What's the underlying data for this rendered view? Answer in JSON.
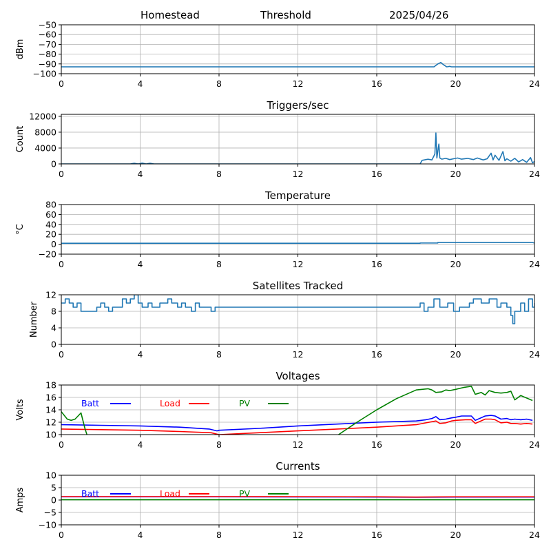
{
  "header": {
    "station": "Homestead",
    "mode": "Threshold",
    "date": "2025/04/26"
  },
  "colors": {
    "signal": "#1f77b4",
    "batt": "#0000ff",
    "load": "#ff0000",
    "pv": "#008000",
    "grid": "#b0b0b0"
  },
  "chart_data": [
    {
      "type": "line",
      "title": "",
      "xlabel": "",
      "ylabel": "dBm",
      "xlim": [
        0,
        24
      ],
      "ylim": [
        -100,
        -50
      ],
      "xticks": [
        0,
        4,
        8,
        12,
        16,
        20,
        24
      ],
      "yticks": [
        -50,
        -60,
        -70,
        -80,
        -90,
        -100
      ],
      "ytick_labels": [
        "−50",
        "−60",
        "−70",
        "−80",
        "−90",
        "−100"
      ],
      "grid": true,
      "series": [
        {
          "color": "signal",
          "x": [
            0,
            18.9,
            19.1,
            19.25,
            19.4,
            19.55,
            19.7,
            19.8,
            24
          ],
          "y": [
            -93,
            -93,
            -90,
            -88.5,
            -91,
            -93,
            -92.5,
            -93,
            -93
          ]
        }
      ]
    },
    {
      "type": "line",
      "title": "Triggers/sec",
      "xlabel": "",
      "ylabel": "Count",
      "xlim": [
        0,
        24
      ],
      "ylim": [
        0,
        12500
      ],
      "xticks": [
        0,
        4,
        8,
        12,
        16,
        20,
        24
      ],
      "yticks": [
        0,
        4000,
        8000,
        12000
      ],
      "ytick_labels": [
        "0",
        "4000",
        "8000",
        "12000"
      ],
      "grid": true,
      "series": [
        {
          "color": "signal",
          "x": [
            0,
            3.5,
            3.7,
            3.9,
            4.1,
            4.3,
            4.5,
            4.7,
            18.2,
            18.3,
            18.6,
            18.8,
            18.95,
            19.0,
            19.05,
            19.15,
            19.2,
            19.3,
            19.5,
            19.7,
            19.9,
            20.1,
            20.3,
            20.6,
            20.9,
            21.1,
            21.4,
            21.6,
            21.8,
            21.9,
            22.0,
            22.2,
            22.4,
            22.5,
            22.6,
            22.8,
            23.0,
            23.2,
            23.4,
            23.6,
            23.8,
            23.9,
            24.0
          ],
          "y": [
            0,
            0,
            150,
            0,
            200,
            0,
            150,
            0,
            0,
            900,
            1200,
            1000,
            2500,
            7800,
            1500,
            5000,
            1500,
            1200,
            1400,
            1100,
            1300,
            1500,
            1200,
            1400,
            1100,
            1500,
            1000,
            1300,
            2700,
            1000,
            2200,
            900,
            3100,
            800,
            1300,
            700,
            1400,
            500,
            1100,
            400,
            1600,
            300,
            600
          ]
        }
      ]
    },
    {
      "type": "line",
      "title": "Temperature",
      "xlabel": "",
      "ylabel": "°C",
      "xlim": [
        0,
        24
      ],
      "ylim": [
        -20,
        80
      ],
      "xticks": [
        0,
        4,
        8,
        12,
        16,
        20,
        24
      ],
      "yticks": [
        80,
        60,
        40,
        20,
        0,
        -20
      ],
      "ytick_labels": [
        "80",
        "60",
        "40",
        "20",
        "0",
        "−20"
      ],
      "grid": true,
      "series": [
        {
          "color": "signal",
          "x": [
            0,
            18.2,
            18.2,
            19.1,
            19.1,
            23.9,
            24
          ],
          "y": [
            2,
            2,
            2.5,
            2.5,
            3.5,
            3.5,
            2.5
          ]
        }
      ]
    },
    {
      "type": "line",
      "title": "Satellites Tracked",
      "xlabel": "",
      "ylabel": "Number",
      "xlim": [
        0,
        24
      ],
      "ylim": [
        0,
        12
      ],
      "xticks": [
        0,
        4,
        8,
        12,
        16,
        20,
        24
      ],
      "yticks": [
        0,
        4,
        8,
        12
      ],
      "ytick_labels": [
        "0",
        "4",
        "8",
        "12"
      ],
      "grid": true,
      "series": [
        {
          "color": "signal",
          "step": true,
          "x": [
            0,
            0.2,
            0.4,
            0.6,
            0.8,
            1.0,
            1.8,
            2.0,
            2.2,
            2.4,
            2.6,
            3.0,
            3.1,
            3.3,
            3.5,
            3.7,
            3.9,
            4.1,
            4.4,
            4.6,
            5.0,
            5.4,
            5.6,
            5.9,
            6.1,
            6.3,
            6.6,
            6.8,
            7.0,
            7.2,
            7.6,
            7.8,
            18.2,
            18.4,
            18.6,
            18.9,
            19.2,
            19.6,
            19.9,
            20.2,
            20.7,
            20.9,
            21.3,
            21.7,
            22.1,
            22.3,
            22.6,
            22.8,
            22.9,
            23.0,
            23.3,
            23.5,
            23.7,
            23.9,
            24.0
          ],
          "y": [
            10,
            11,
            10,
            9,
            10,
            8,
            9,
            10,
            9,
            8,
            9,
            9,
            11,
            10,
            11,
            12,
            10,
            9,
            10,
            9,
            10,
            11,
            10,
            9,
            10,
            9,
            8,
            10,
            9,
            9,
            8,
            9,
            10,
            8,
            9,
            11,
            9,
            10,
            8,
            9,
            10,
            11,
            10,
            11,
            9,
            10,
            9,
            7,
            5,
            8,
            10,
            8,
            11,
            9,
            10
          ]
        }
      ]
    },
    {
      "type": "line",
      "title": "Voltages",
      "xlabel": "",
      "ylabel": "Volts",
      "xlim": [
        0,
        24
      ],
      "ylim": [
        10,
        18
      ],
      "xticks": [
        0,
        4,
        8,
        12,
        16,
        20,
        24
      ],
      "yticks": [
        10,
        12,
        14,
        16,
        18
      ],
      "ytick_labels": [
        "10",
        "12",
        "14",
        "16",
        "18"
      ],
      "grid": true,
      "legend": "top-left",
      "series": [
        {
          "name": "Batt",
          "color": "batt",
          "x": [
            0,
            2,
            4,
            6,
            7.5,
            7.9,
            8.0,
            10,
            12,
            14,
            16,
            18,
            18.5,
            18.8,
            19.0,
            19.2,
            19.5,
            19.8,
            20.0,
            20.3,
            20.8,
            21.0,
            21.5,
            21.8,
            22.0,
            22.3,
            22.6,
            22.8,
            23.0,
            23.3,
            23.6,
            23.9
          ],
          "y": [
            11.6,
            11.5,
            11.4,
            11.2,
            10.9,
            10.6,
            10.7,
            11.0,
            11.4,
            11.7,
            12.0,
            12.2,
            12.4,
            12.6,
            12.9,
            12.4,
            12.5,
            12.7,
            12.8,
            13.0,
            13.0,
            12.3,
            13.0,
            13.1,
            13.0,
            12.5,
            12.6,
            12.4,
            12.5,
            12.4,
            12.5,
            12.3
          ]
        },
        {
          "name": "Load",
          "color": "load",
          "x": [
            0,
            2,
            4,
            6,
            7.6,
            8.0,
            10,
            12,
            14,
            16,
            18,
            18.5,
            19.0,
            19.2,
            19.5,
            19.8,
            20.0,
            20.5,
            20.8,
            21.0,
            21.5,
            21.8,
            22.0,
            22.3,
            22.6,
            22.8,
            23.0,
            23.3,
            23.6,
            23.9
          ],
          "y": [
            10.9,
            10.8,
            10.7,
            10.5,
            10.3,
            10.0,
            10.3,
            10.6,
            10.9,
            11.2,
            11.6,
            11.9,
            12.2,
            11.8,
            11.9,
            12.2,
            12.3,
            12.4,
            12.4,
            11.8,
            12.5,
            12.5,
            12.4,
            11.9,
            12.0,
            11.8,
            11.8,
            11.7,
            11.8,
            11.7
          ]
        },
        {
          "name": "PV",
          "color": "pv",
          "x": [
            0,
            0.3,
            0.5,
            0.7,
            1.0,
            1.2,
            1.5,
            13.6,
            15,
            16,
            17,
            18,
            18.3,
            18.6,
            18.8,
            19.0,
            19.3,
            19.5,
            19.7,
            20.0,
            20.4,
            20.8,
            21.0,
            21.3,
            21.5,
            21.7,
            22.0,
            22.3,
            22.6,
            22.8,
            23.0,
            23.3,
            23.6,
            23.9
          ],
          "y": [
            13.7,
            12.5,
            12.3,
            12.5,
            13.5,
            11.0,
            8.0,
            9.0,
            12.0,
            14.0,
            15.8,
            17.2,
            17.3,
            17.4,
            17.2,
            16.8,
            16.9,
            17.2,
            17.1,
            17.3,
            17.6,
            17.8,
            16.5,
            16.8,
            16.4,
            17.1,
            16.8,
            16.7,
            16.8,
            17.0,
            15.6,
            16.3,
            15.9,
            15.5
          ]
        }
      ]
    },
    {
      "type": "line",
      "title": "Currents",
      "xlabel": "",
      "ylabel": "Amps",
      "xlim": [
        0,
        24
      ],
      "ylim": [
        -10,
        10
      ],
      "xticks": [
        0,
        4,
        8,
        12,
        16,
        20,
        24
      ],
      "yticks": [
        10,
        5,
        0,
        -5,
        -10
      ],
      "ytick_labels": [
        "10",
        "5",
        "0",
        "−5",
        "−10"
      ],
      "grid": true,
      "legend": "top-left",
      "series": [
        {
          "name": "Batt",
          "color": "batt",
          "x": [
            0,
            8,
            16,
            18,
            20,
            24
          ],
          "y": [
            1.3,
            1.3,
            1.2,
            1.1,
            1.2,
            1.2
          ]
        },
        {
          "name": "Load",
          "color": "load",
          "x": [
            0,
            8,
            16,
            18,
            20,
            24
          ],
          "y": [
            1.4,
            1.4,
            1.3,
            1.2,
            1.3,
            1.3
          ]
        },
        {
          "name": "PV",
          "color": "pv",
          "x": [
            0,
            24
          ],
          "y": [
            0.1,
            0.1
          ]
        }
      ]
    }
  ]
}
